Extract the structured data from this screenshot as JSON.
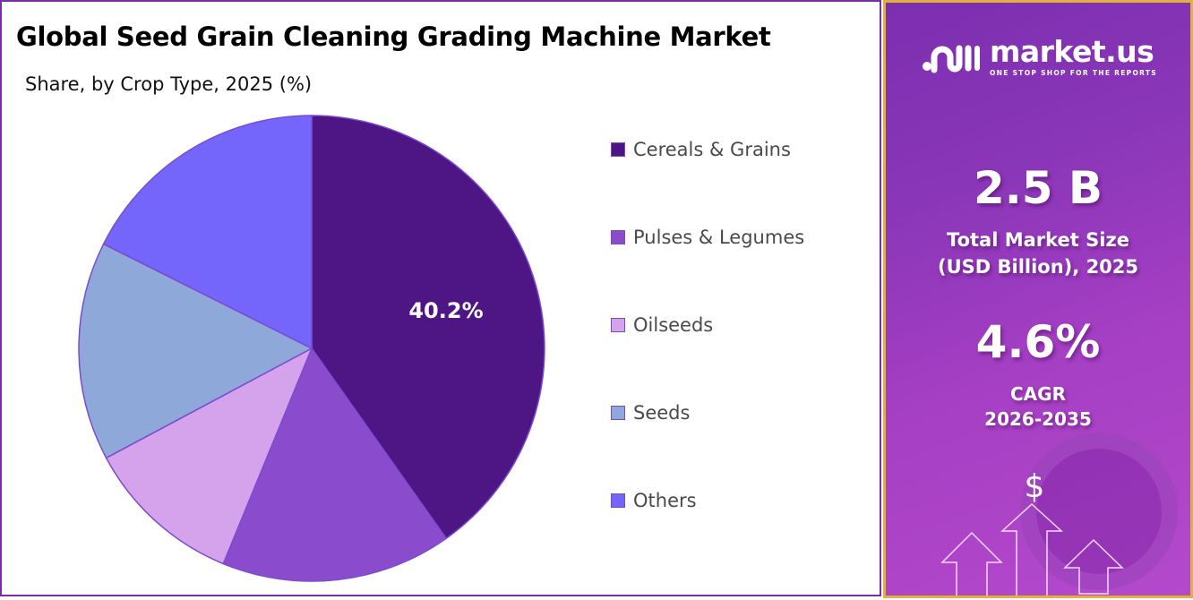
{
  "header": {
    "title": "Global Seed Grain Cleaning Grading Machine Market",
    "subtitle": "Share, by Crop Type, 2025 (%)"
  },
  "chart_data": {
    "type": "pie",
    "title": "Global Seed Grain Cleaning Grading Machine Market",
    "subtitle": "Share, by Crop Type, 2025 (%)",
    "categories": [
      "Cereals & Grains",
      "Pulses & Legumes",
      "Oilseeds",
      "Seeds",
      "Others"
    ],
    "values": [
      40.2,
      16.0,
      11.0,
      15.2,
      17.6
    ],
    "colors": [
      "#4e1684",
      "#8a4ccc",
      "#d4a3ec",
      "#8ea8da",
      "#7466fb"
    ],
    "data_labels": [
      "40.2%",
      "",
      "",
      "",
      ""
    ],
    "start_angle": "12 o'clock, clockwise",
    "legend_position": "right"
  },
  "legend": {
    "items": [
      {
        "label": "Cereals & Grains",
        "color": "#4e1684"
      },
      {
        "label": "Pulses & Legumes",
        "color": "#8a4ccc"
      },
      {
        "label": "Oilseeds",
        "color": "#d4a3ec"
      },
      {
        "label": "Seeds",
        "color": "#8ea8da"
      },
      {
        "label": "Others",
        "color": "#7466fb"
      }
    ]
  },
  "pie_label": "40.2%",
  "brand": {
    "name": "market.us",
    "tagline": "ONE STOP SHOP FOR THE REPORTS"
  },
  "stats": {
    "market_size_value": "2.5 B",
    "market_size_label_1": "Total Market Size",
    "market_size_label_2": "(USD Billion), 2025",
    "cagr_value": "4.6%",
    "cagr_label_1": "CAGR",
    "cagr_label_2": "2026-2035"
  },
  "icons": {
    "dollar": "$"
  }
}
